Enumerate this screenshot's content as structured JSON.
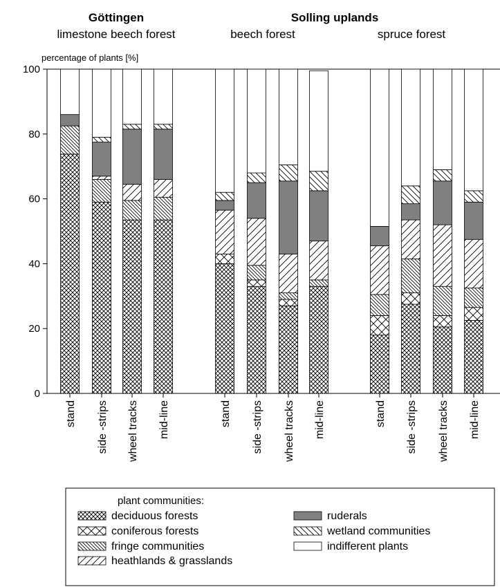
{
  "chart_data": {
    "type": "bar",
    "stacked": true,
    "ylabel": "percentage of plants [%]",
    "ylim": [
      0,
      100
    ],
    "yticks": [
      0,
      20,
      40,
      60,
      80,
      100
    ],
    "grid": false,
    "legend_placement": "bottom",
    "groups": [
      {
        "title": "Göttingen",
        "subtitle": "limestone beech forest"
      },
      {
        "title": "Solling uplands",
        "subtitle": "beech forest"
      },
      {
        "title": "",
        "subtitle": "spruce forest"
      }
    ],
    "categories": [
      "stand",
      "side -strips",
      "wheel tracks",
      "mid-line",
      "stand",
      "side -strips",
      "wheel tracks",
      "mid-line",
      "stand",
      "side -strips",
      "wheel tracks",
      "mid-line"
    ],
    "legend_title": "plant communities:",
    "series": [
      {
        "name": "deciduous forests",
        "pattern": "crosshatch",
        "values": [
          73.8,
          59.0,
          53.5,
          53.5,
          40.0,
          33.0,
          27.0,
          33.0,
          18.0,
          27.5,
          20.5,
          22.5
        ]
      },
      {
        "name": "coniferous forests",
        "pattern": "diamond",
        "values": [
          0.0,
          0.0,
          0.0,
          0.0,
          3.0,
          2.0,
          2.0,
          0.0,
          6.0,
          3.5,
          3.5,
          4.0
        ]
      },
      {
        "name": "fringe communities",
        "pattern": "back-diagonal",
        "values": [
          8.7,
          7.0,
          6.0,
          7.0,
          0.0,
          4.5,
          2.0,
          2.0,
          6.5,
          10.5,
          9.0,
          6.0
        ]
      },
      {
        "name": "heathlands & grasslands",
        "pattern": "forward-diagonal",
        "values": [
          0.0,
          1.0,
          5.0,
          5.5,
          13.5,
          14.5,
          12.0,
          12.0,
          15.0,
          12.0,
          19.0,
          15.0
        ]
      },
      {
        "name": "ruderals",
        "pattern": "solid-gray",
        "values": [
          3.5,
          10.5,
          17.0,
          15.5,
          3.0,
          11.0,
          22.5,
          15.5,
          6.0,
          5.0,
          13.5,
          11.5
        ]
      },
      {
        "name": "wetland communities",
        "pattern": "steep-diagonal",
        "values": [
          0.0,
          1.5,
          1.5,
          1.5,
          2.5,
          3.0,
          5.0,
          6.0,
          0.0,
          5.5,
          3.5,
          3.5
        ]
      },
      {
        "name": "indifferent plants",
        "pattern": "white",
        "values": [
          14.0,
          21.0,
          17.0,
          17.0,
          38.0,
          32.0,
          29.5,
          31.0,
          48.5,
          36.0,
          31.0,
          37.5
        ]
      }
    ],
    "colors": {
      "ruderals": "#808080",
      "ink": "#000000",
      "background": "#ffffff"
    }
  }
}
